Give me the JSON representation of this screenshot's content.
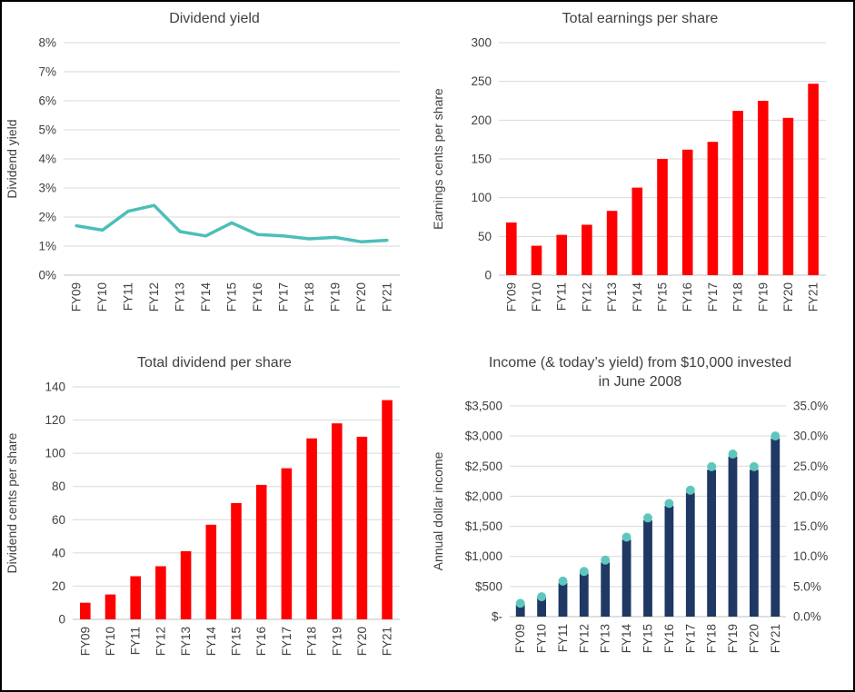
{
  "colors": {
    "text": "#404040",
    "gridline": "#D9D9D9",
    "axis_line": "#BFBFBF",
    "background": "#FFFFFF",
    "border": "#000000",
    "teal_accent": "#4BBFB8",
    "red_accent": "#FF0000",
    "navy_accent": "#1F3864"
  },
  "chart_data": [
    {
      "type": "line",
      "title": "Dividend yield",
      "ylabel": "Dividend yield",
      "categories": [
        "FY09",
        "FY10",
        "FY11",
        "FY12",
        "FY13",
        "FY14",
        "FY15",
        "FY16",
        "FY17",
        "FY18",
        "FY19",
        "FY20",
        "FY21"
      ],
      "values": [
        1.7,
        1.55,
        2.2,
        2.4,
        1.5,
        1.35,
        1.8,
        1.4,
        1.35,
        1.25,
        1.3,
        1.15,
        1.2
      ],
      "ylim": [
        0,
        8
      ],
      "ytick_labels": [
        "0%",
        "1%",
        "2%",
        "3%",
        "4%",
        "5%",
        "6%",
        "7%",
        "8%"
      ],
      "line_color": "#4BBFB8",
      "grid": true,
      "legend": false
    },
    {
      "type": "bar",
      "title": "Total earnings per share",
      "ylabel": "Earnings cents per share",
      "categories": [
        "FY09",
        "FY10",
        "FY11",
        "FY12",
        "FY13",
        "FY14",
        "FY15",
        "FY16",
        "FY17",
        "FY18",
        "FY19",
        "FY20",
        "FY21"
      ],
      "values": [
        68,
        38,
        52,
        65,
        83,
        113,
        150,
        162,
        172,
        212,
        225,
        203,
        247
      ],
      "ylim": [
        0,
        300
      ],
      "ytick_labels": [
        "0",
        "50",
        "100",
        "150",
        "200",
        "250",
        "300"
      ],
      "bar_color": "#FF0000",
      "grid": true,
      "legend": false
    },
    {
      "type": "bar",
      "title": "Total dividend per share",
      "ylabel": "Dividend cents per share",
      "categories": [
        "FY09",
        "FY10",
        "FY11",
        "FY12",
        "FY13",
        "FY14",
        "FY15",
        "FY16",
        "FY17",
        "FY18",
        "FY19",
        "FY20",
        "FY21"
      ],
      "values": [
        10,
        15,
        26,
        32,
        41,
        57,
        70,
        81,
        91,
        109,
        118,
        110,
        132
      ],
      "ylim": [
        0,
        140
      ],
      "ytick_labels": [
        "0",
        "20",
        "40",
        "60",
        "80",
        "100",
        "120",
        "140"
      ],
      "bar_color": "#FF0000",
      "grid": true,
      "legend": false
    },
    {
      "type": "bar-scatter",
      "title": "Income (& today’s yield) from $10,000 invested in June 2008",
      "ylabel": "Annual dollar income",
      "categories": [
        "FY09",
        "FY10",
        "FY11",
        "FY12",
        "FY13",
        "FY14",
        "FY15",
        "FY16",
        "FY17",
        "FY18",
        "FY19",
        "FY20",
        "FY21"
      ],
      "bar_values": [
        200,
        320,
        560,
        720,
        900,
        1280,
        1600,
        1840,
        2060,
        2440,
        2660,
        2440,
        2960
      ],
      "dot_values": [
        2.2,
        3.3,
        5.9,
        7.5,
        9.4,
        13.2,
        16.4,
        18.8,
        21.0,
        24.9,
        27.0,
        24.9,
        30.0
      ],
      "ylim": [
        0,
        3500
      ],
      "ytick_labels": [
        "$-",
        "$500",
        "$1,000",
        "$1,500",
        "$2,000",
        "$2,500",
        "$3,000",
        "$3,500"
      ],
      "y2lim": [
        0,
        35
      ],
      "y2tick_labels": [
        "0.0%",
        "5.0%",
        "10.0%",
        "15.0%",
        "20.0%",
        "25.0%",
        "30.0%",
        "35.0%"
      ],
      "bar_color": "#1F3864",
      "dot_color": "#5FC6BE",
      "grid": true,
      "legend": false
    }
  ]
}
